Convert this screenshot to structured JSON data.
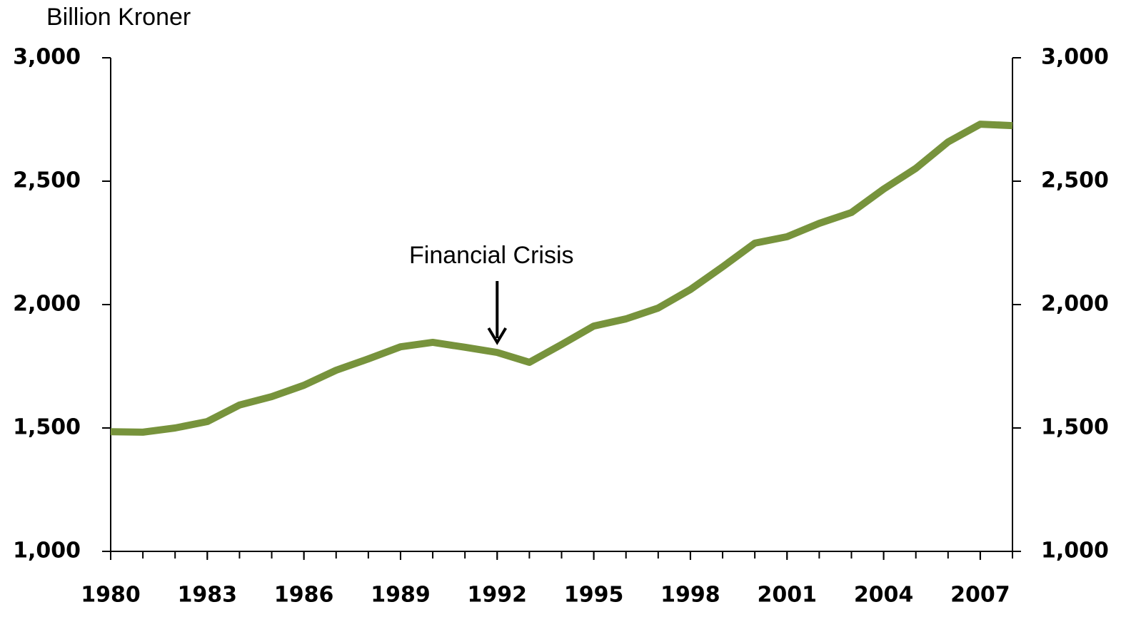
{
  "chart_data": {
    "type": "line",
    "y_axis_label": "Billion Kroner",
    "annotations": [
      {
        "text": "Financial Crisis",
        "x": 1992
      }
    ],
    "x": [
      1980,
      1981,
      1982,
      1983,
      1984,
      1985,
      1986,
      1987,
      1988,
      1989,
      1990,
      1991,
      1992,
      1993,
      1994,
      1995,
      1996,
      1997,
      1998,
      1999,
      2000,
      2001,
      2002,
      2003,
      2004,
      2005,
      2006,
      2007,
      2008
    ],
    "series": [
      {
        "name": "Billion Kroner",
        "color": "#77933c",
        "values": [
          1485,
          1483,
          1500,
          1526,
          1593,
          1627,
          1673,
          1734,
          1780,
          1829,
          1847,
          1827,
          1806,
          1766,
          1838,
          1913,
          1942,
          1986,
          2061,
          2153,
          2249,
          2275,
          2329,
          2373,
          2468,
          2552,
          2659,
          2731,
          2725
        ]
      }
    ],
    "xlim": [
      1980,
      2008
    ],
    "xticks": [
      1980,
      1983,
      1986,
      1989,
      1992,
      1995,
      1998,
      2001,
      2004,
      2007
    ],
    "ylim": [
      1000,
      3000
    ],
    "yticks": [
      {
        "value": 1000,
        "label": "1,000"
      },
      {
        "value": 1500,
        "label": "1,500"
      },
      {
        "value": 2000,
        "label": "2,000"
      },
      {
        "value": 2500,
        "label": "2,500"
      },
      {
        "value": 3000,
        "label": "3,000"
      }
    ],
    "y2lim": [
      1000,
      3000
    ],
    "y2ticks": [
      {
        "value": 1000,
        "label": "1,000"
      },
      {
        "value": 1500,
        "label": "1,500"
      },
      {
        "value": 2000,
        "label": "2,000"
      },
      {
        "value": 2500,
        "label": "2,500"
      },
      {
        "value": 3000,
        "label": "3,000"
      }
    ],
    "grid": false
  }
}
